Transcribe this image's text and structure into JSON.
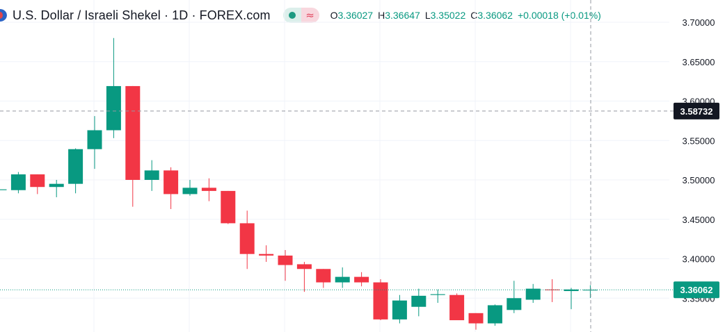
{
  "header": {
    "title": "U.S. Dollar / Israeli Shekel · 1D · FOREX.com",
    "ohlc": {
      "o_label": "O",
      "o": "3.36027",
      "h_label": "H",
      "h": "3.36647",
      "l_label": "L",
      "l": "3.35022",
      "c_label": "C",
      "c": "3.36062",
      "change": "+0.00018 (+0.01%)"
    }
  },
  "colors": {
    "up": "#089981",
    "down": "#f23645",
    "grid": "#f0f3fa",
    "crosshair_label_bg": "#131722",
    "last_price_label_bg": "#089981"
  },
  "chart_data": {
    "type": "candlestick",
    "y_axis": {
      "position": "right",
      "ticks": [
        "3.70000",
        "3.65000",
        "3.60000",
        "3.55000",
        "3.50000",
        "3.45000",
        "3.40000",
        "3.35000"
      ],
      "range": [
        3.318,
        3.72
      ]
    },
    "crosshair_price": "3.58732",
    "last_price": "3.36062",
    "grid": true,
    "candles": [
      {
        "o": 3.487,
        "h": 3.489,
        "l": 3.485,
        "c": 3.488
      },
      {
        "o": 3.487,
        "h": 3.51,
        "l": 3.483,
        "c": 3.507
      },
      {
        "o": 3.507,
        "h": 3.507,
        "l": 3.482,
        "c": 3.491
      },
      {
        "o": 3.491,
        "h": 3.5,
        "l": 3.478,
        "c": 3.495
      },
      {
        "o": 3.495,
        "h": 3.54,
        "l": 3.483,
        "c": 3.539
      },
      {
        "o": 3.539,
        "h": 3.581,
        "l": 3.514,
        "c": 3.563
      },
      {
        "o": 3.563,
        "h": 3.68,
        "l": 3.553,
        "c": 3.619
      },
      {
        "o": 3.619,
        "h": 3.619,
        "l": 3.466,
        "c": 3.5
      },
      {
        "o": 3.5,
        "h": 3.525,
        "l": 3.486,
        "c": 3.512
      },
      {
        "o": 3.512,
        "h": 3.516,
        "l": 3.463,
        "c": 3.482
      },
      {
        "o": 3.482,
        "h": 3.5,
        "l": 3.48,
        "c": 3.49
      },
      {
        "o": 3.49,
        "h": 3.502,
        "l": 3.473,
        "c": 3.486
      },
      {
        "o": 3.486,
        "h": 3.486,
        "l": 3.444,
        "c": 3.445
      },
      {
        "o": 3.445,
        "h": 3.461,
        "l": 3.387,
        "c": 3.406
      },
      {
        "o": 3.406,
        "h": 3.417,
        "l": 3.396,
        "c": 3.404
      },
      {
        "o": 3.404,
        "h": 3.411,
        "l": 3.372,
        "c": 3.392
      },
      {
        "o": 3.393,
        "h": 3.396,
        "l": 3.358,
        "c": 3.387
      },
      {
        "o": 3.387,
        "h": 3.387,
        "l": 3.363,
        "c": 3.37
      },
      {
        "o": 3.37,
        "h": 3.389,
        "l": 3.363,
        "c": 3.377
      },
      {
        "o": 3.377,
        "h": 3.383,
        "l": 3.365,
        "c": 3.37
      },
      {
        "o": 3.37,
        "h": 3.374,
        "l": 3.322,
        "c": 3.323
      },
      {
        "o": 3.323,
        "h": 3.354,
        "l": 3.318,
        "c": 3.347
      },
      {
        "o": 3.339,
        "h": 3.362,
        "l": 3.327,
        "c": 3.353
      },
      {
        "o": 3.354,
        "h": 3.361,
        "l": 3.344,
        "c": 3.355
      },
      {
        "o": 3.354,
        "h": 3.356,
        "l": 3.324,
        "c": 3.322
      },
      {
        "o": 3.331,
        "h": 3.331,
        "l": 3.31,
        "c": 3.318
      },
      {
        "o": 3.318,
        "h": 3.342,
        "l": 3.315,
        "c": 3.341
      },
      {
        "o": 3.335,
        "h": 3.372,
        "l": 3.331,
        "c": 3.35
      },
      {
        "o": 3.348,
        "h": 3.368,
        "l": 3.344,
        "c": 3.362
      },
      {
        "o": 3.361,
        "h": 3.374,
        "l": 3.345,
        "c": 3.36
      },
      {
        "o": 3.359,
        "h": 3.363,
        "l": 3.336,
        "c": 3.361
      },
      {
        "o": 3.3603,
        "h": 3.3665,
        "l": 3.3502,
        "c": 3.3606
      }
    ]
  }
}
